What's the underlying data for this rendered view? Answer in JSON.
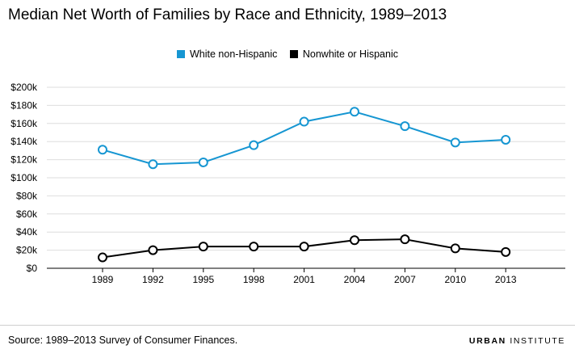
{
  "chart_data": {
    "type": "line",
    "title": "Median Net Worth of Families by Race and Ethnicity, 1989–2013",
    "categories": [
      "1989",
      "1992",
      "1995",
      "1998",
      "2001",
      "2004",
      "2007",
      "2010",
      "2013"
    ],
    "yticks": [
      "$0",
      "$20k",
      "$40k",
      "$60k",
      "$80k",
      "$100k",
      "$120k",
      "$140k",
      "$160k",
      "$180k",
      "$200k"
    ],
    "ylim": [
      0,
      200000
    ],
    "xlabel": "",
    "ylabel": "",
    "grid": true,
    "legend_position": "top-center",
    "series": [
      {
        "name": "White non-Hispanic",
        "color": "#1696d2",
        "values": [
          131000,
          115000,
          117000,
          136000,
          162000,
          173000,
          157000,
          139000,
          142000
        ]
      },
      {
        "name": "Nonwhite or Hispanic",
        "color": "#000000",
        "values": [
          12000,
          20000,
          24000,
          24000,
          24000,
          31000,
          32000,
          22000,
          18000
        ]
      }
    ]
  },
  "footer": {
    "source": "Source: 1989–2013 Survey of Consumer Finances.",
    "brand_part1": "URBAN",
    "brand_part2": "INSTITUTE"
  }
}
